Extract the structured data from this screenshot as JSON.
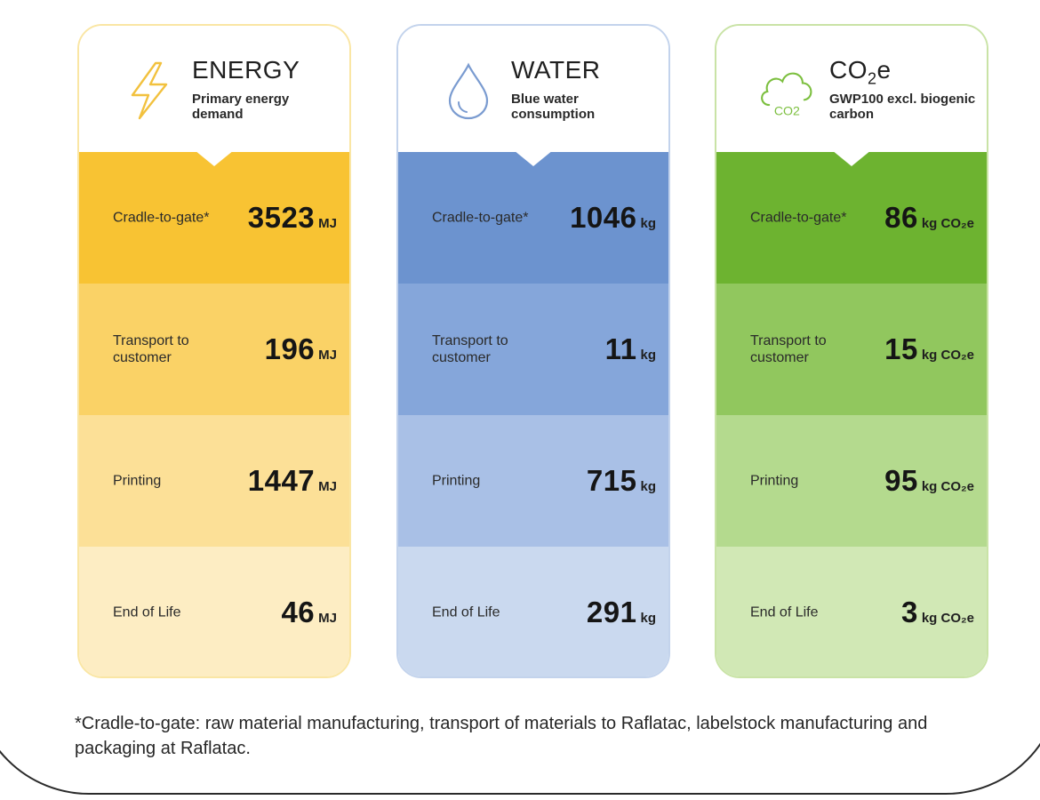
{
  "cards": [
    {
      "key": "energy",
      "title": "ENERGY",
      "subtitle": "Primary energy demand",
      "icon": "lightning-bolt-icon",
      "accent": "#f8c333",
      "rows": [
        {
          "label": "Cradle-to-gate*",
          "value": "3523",
          "unit": "MJ"
        },
        {
          "label": "Transport to customer",
          "value": "196",
          "unit": "MJ"
        },
        {
          "label": "Printing",
          "value": "1447",
          "unit": "MJ"
        },
        {
          "label": "End of Life",
          "value": "46",
          "unit": "MJ"
        }
      ]
    },
    {
      "key": "water",
      "title": "WATER",
      "subtitle": "Blue water consumption",
      "icon": "water-drop-icon",
      "accent": "#6c93cf",
      "rows": [
        {
          "label": "Cradle-to-gate*",
          "value": "1046",
          "unit": "kg"
        },
        {
          "label": "Transport to customer",
          "value": "11",
          "unit": "kg"
        },
        {
          "label": "Printing",
          "value": "715",
          "unit": "kg"
        },
        {
          "label": "End of Life",
          "value": "291",
          "unit": "kg"
        }
      ]
    },
    {
      "key": "co2",
      "title": "CO",
      "title_sub": "2",
      "title_suffix": "e",
      "subtitle": "GWP100 excl. biogenic carbon",
      "icon": "co2-cloud-icon",
      "icon_text": "CO2",
      "accent": "#6db330",
      "rows": [
        {
          "label": "Cradle-to-gate*",
          "value": "86",
          "unit": "kg CO₂e"
        },
        {
          "label": "Transport to customer",
          "value": "15",
          "unit": "kg CO₂e"
        },
        {
          "label": "Printing",
          "value": "95",
          "unit": "kg CO₂e"
        },
        {
          "label": "End of Life",
          "value": "3",
          "unit": "kg CO₂e"
        }
      ]
    }
  ],
  "footnote": "*Cradle-to-gate: raw material manufacturing, transport of materials to Raflatac, labelstock manufacturing and packaging at Raflatac."
}
